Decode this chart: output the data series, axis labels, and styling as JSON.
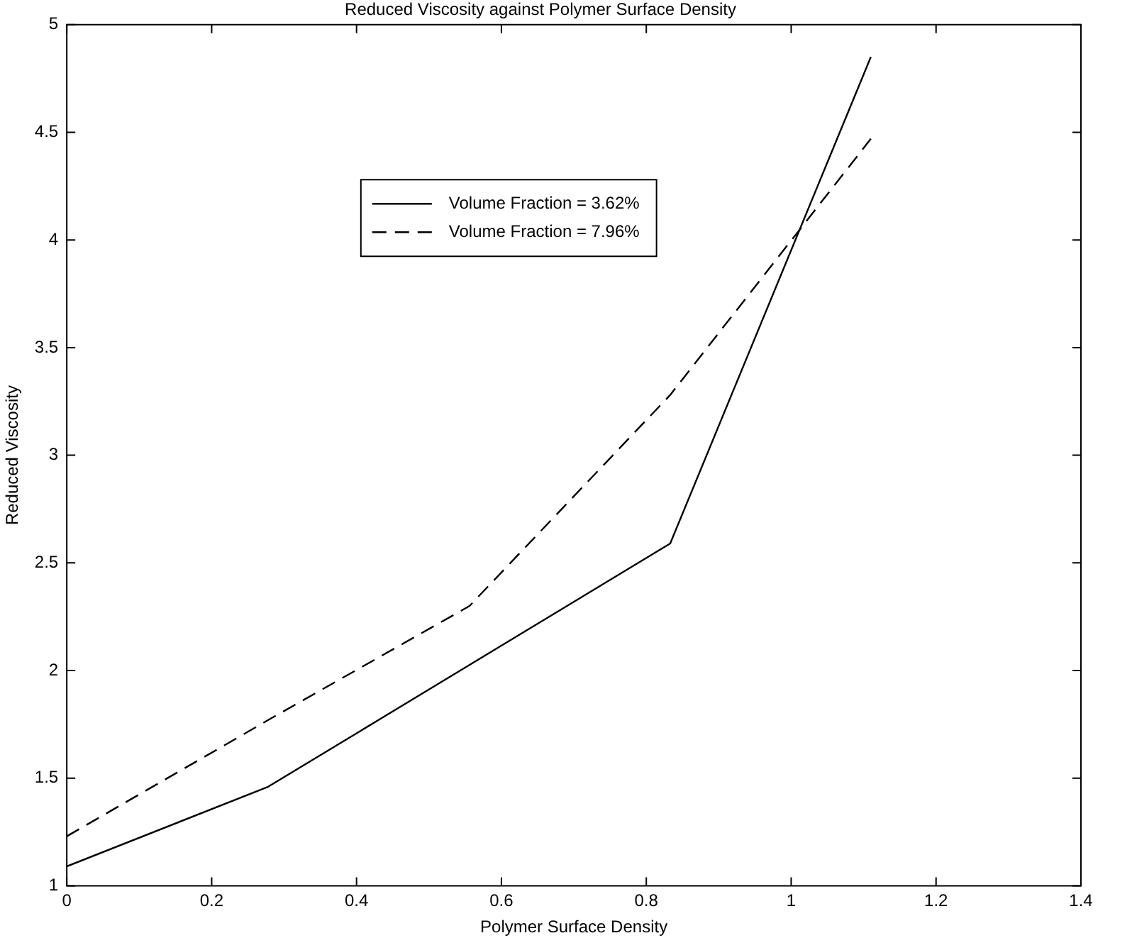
{
  "chart_data": {
    "type": "line",
    "title": "Reduced Viscosity against Polymer Surface Density",
    "xlabel": "Polymer Surface Density",
    "ylabel": "Reduced Viscosity",
    "xlim": [
      0,
      1.4
    ],
    "xticks": [
      0,
      0.2,
      0.4,
      0.6,
      0.8,
      1,
      1.2,
      1.4
    ],
    "ylim": [
      1,
      5
    ],
    "yticks": [
      1,
      1.5,
      2,
      2.5,
      3,
      3.5,
      4,
      4.5,
      5
    ],
    "grid": false,
    "legend": "top",
    "marker": "none",
    "series": [
      {
        "name": "Volume Fraction = 3.62%",
        "color": "#000000",
        "line_style": "solid",
        "x": [
          0,
          0.278,
          0.833,
          1.11
        ],
        "values": [
          1.09,
          1.46,
          2.59,
          4.85
        ]
      },
      {
        "name": "Volume Fraction = 7.96%",
        "color": "#000000",
        "line_style": "dashed",
        "x": [
          0,
          0.278,
          0.556,
          0.833,
          1.11
        ],
        "values": [
          1.23,
          1.77,
          2.3,
          3.28,
          4.47
        ]
      }
    ]
  }
}
